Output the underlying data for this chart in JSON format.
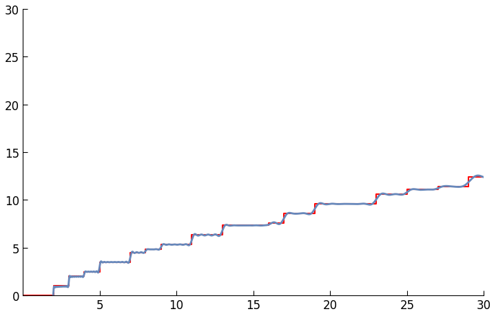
{
  "xlim": [
    0,
    30
  ],
  "ylim": [
    0,
    30
  ],
  "xticks": [
    5,
    10,
    15,
    20,
    25,
    30
  ],
  "yticks": [
    0,
    5,
    10,
    15,
    20,
    25,
    30
  ],
  "step_color": "#ff0000",
  "smooth_color": "#6688bb",
  "step_linewidth": 1.5,
  "smooth_linewidth": 2.0,
  "background_color": "#ffffff",
  "figsize": [
    7.2,
    4.6
  ],
  "dpi": 100,
  "num_zeros": 60,
  "x_max": 30,
  "n_points": 3000
}
